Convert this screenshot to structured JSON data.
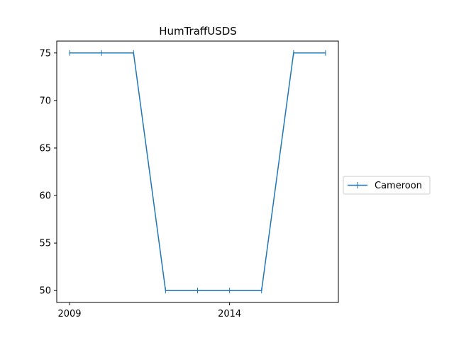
{
  "chart_data": {
    "type": "line",
    "title": "HumTraffUSDS",
    "xlabel": "",
    "ylabel": "",
    "x": [
      2009,
      2010,
      2011,
      2012,
      2013,
      2014,
      2015,
      2016,
      2017
    ],
    "series": [
      {
        "name": "Cameroon",
        "color": "#1f77b4",
        "marker": "vline",
        "values": [
          75,
          75,
          75,
          50,
          50,
          50,
          50,
          75,
          75
        ]
      }
    ],
    "xlim": [
      2008.6,
      2017.4
    ],
    "ylim": [
      48.75,
      76.25
    ],
    "xticks": [
      2009,
      2014
    ],
    "yticks": [
      50,
      55,
      60,
      65,
      70,
      75
    ],
    "grid": false,
    "legend": {
      "placement": "outside-right"
    }
  }
}
